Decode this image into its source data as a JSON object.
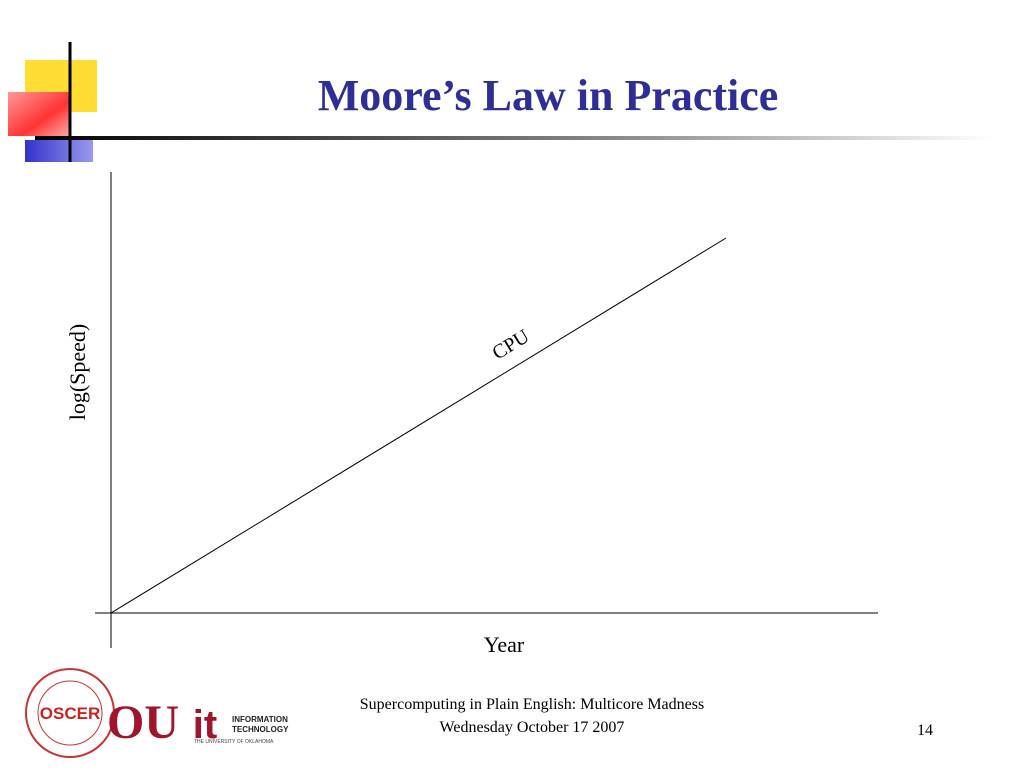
{
  "slide": {
    "title": "Moore’s Law in Practice",
    "diagram": {
      "y_label": "log(Speed)",
      "x_label": "Year",
      "line_label": "CPU"
    },
    "logos": {
      "oscer": "OSCER",
      "ou": "OU",
      "it": "it",
      "it_line1": "INFORMATION",
      "it_line2": "TECHNOLOGY",
      "it_line3": "THE UNIVERSITY OF OKLAHOMA"
    },
    "footer": {
      "line1": "Supercomputing in Plain English: Multicore Madness",
      "line2": "Wednesday October 17 2007"
    },
    "page_number": "14"
  }
}
